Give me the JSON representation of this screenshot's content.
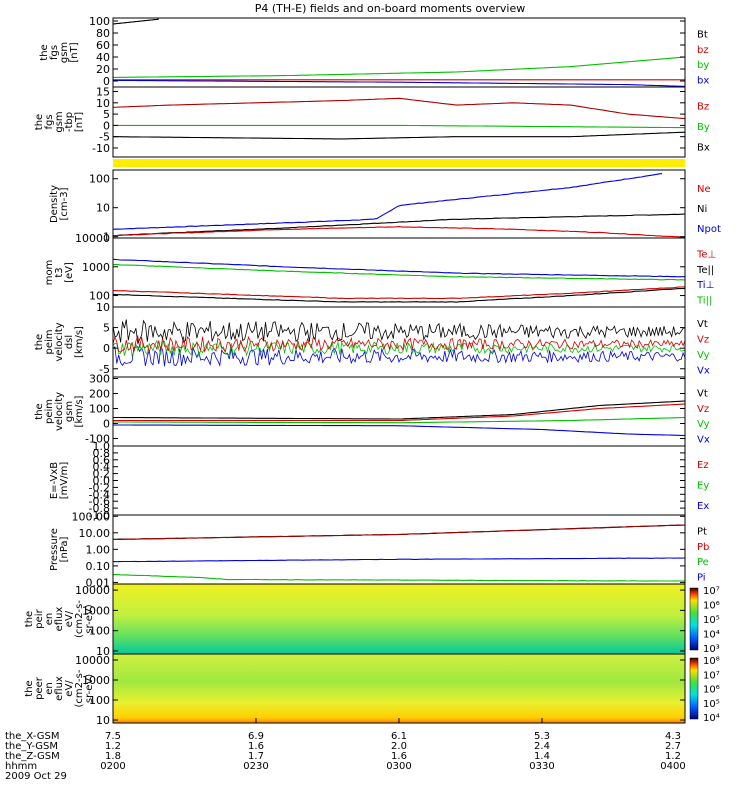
{
  "title": "P4 (TH-E) fields and on-board moments overview",
  "chart_data": [
    {
      "type": "line",
      "ylabel": [
        "the",
        "fgs",
        "gsm",
        "[nT]"
      ],
      "yticks": [
        "0",
        "20",
        "40",
        "60",
        "80",
        "100"
      ],
      "ylim": [
        -10,
        105
      ],
      "legend": [
        {
          "name": "Bt",
          "color": "#000000"
        },
        {
          "name": "bz",
          "color": "#d40000"
        },
        {
          "name": "by",
          "color": "#00c000"
        },
        {
          "name": "bx",
          "color": "#0000e0"
        }
      ],
      "series": [
        {
          "name": "Bt",
          "color": "#000000",
          "x": [
            0,
            0.08
          ],
          "y": [
            95,
            103
          ]
        },
        {
          "name": "bz",
          "color": "#d40000",
          "x": [
            0,
            1
          ],
          "y": [
            2,
            2
          ]
        },
        {
          "name": "by",
          "color": "#00c000",
          "x": [
            0,
            0.3,
            0.6,
            0.8,
            1
          ],
          "y": [
            6,
            9,
            15,
            24,
            40
          ]
        },
        {
          "name": "bx",
          "color": "#0000e0",
          "x": [
            0,
            0.5,
            0.9,
            1
          ],
          "y": [
            1,
            -2,
            -6,
            -9
          ]
        }
      ]
    },
    {
      "type": "line",
      "ylabel": [
        "the",
        "fgs",
        "gsm",
        "-tbp",
        "[nT]"
      ],
      "yticks": [
        "-10",
        "-5",
        "0",
        "5",
        "10",
        "15"
      ],
      "ylim": [
        -14,
        17
      ],
      "legend": [
        {
          "name": "Bz",
          "color": "#d40000"
        },
        {
          "name": "By",
          "color": "#00c000"
        },
        {
          "name": "Bx",
          "color": "#000000"
        }
      ],
      "series": [
        {
          "name": "Bz",
          "color": "#b00000",
          "x": [
            0,
            0.1,
            0.25,
            0.4,
            0.5,
            0.6,
            0.7,
            0.8,
            0.9,
            1
          ],
          "y": [
            8,
            9,
            10,
            11,
            12,
            9,
            10,
            9,
            5,
            3
          ]
        },
        {
          "name": "By",
          "color": "#00c000",
          "x": [
            0,
            0.5,
            1
          ],
          "y": [
            0,
            0,
            -1
          ]
        },
        {
          "name": "Bx",
          "color": "#000000",
          "x": [
            0,
            0.4,
            0.6,
            0.8,
            1
          ],
          "y": [
            -5,
            -6,
            -5,
            -5,
            -3
          ]
        }
      ]
    },
    {
      "type": "line",
      "ylabel": [
        "Density",
        "[cm-3]"
      ],
      "yticks": [
        "1",
        "10",
        "100"
      ],
      "ylog": true,
      "ylim": [
        0.9,
        200
      ],
      "legend": [
        {
          "name": "Ne",
          "color": "#d40000"
        },
        {
          "name": "Ni",
          "color": "#000000"
        },
        {
          "name": "Npot",
          "color": "#0000e0"
        }
      ],
      "series": [
        {
          "name": "Npot",
          "color": "#0000e0",
          "x": [
            0,
            0.3,
            0.46,
            0.5,
            0.8,
            0.96
          ],
          "y": [
            1.8,
            3,
            4,
            12,
            50,
            150
          ]
        },
        {
          "name": "Ni",
          "color": "#000000",
          "x": [
            0,
            0.3,
            0.6,
            1
          ],
          "y": [
            1.1,
            2,
            4,
            6
          ]
        },
        {
          "name": "Ne",
          "color": "#d40000",
          "x": [
            0,
            0.3,
            0.5,
            0.7,
            0.85,
            1
          ],
          "y": [
            1.1,
            1.8,
            2.2,
            1.8,
            1.4,
            0.95
          ]
        }
      ]
    },
    {
      "type": "line",
      "ylabel": [
        "mom",
        "t3",
        "[eV]"
      ],
      "yticks": [
        "100",
        "1000",
        "10000"
      ],
      "ylog": true,
      "ylim": [
        40,
        10000
      ],
      "legend": [
        {
          "name": "Te⊥",
          "color": "#d40000"
        },
        {
          "name": "Te||",
          "color": "#000000"
        },
        {
          "name": "Ti⊥",
          "color": "#0000e0"
        },
        {
          "name": "Ti||",
          "color": "#00c000"
        }
      ],
      "series": [
        {
          "name": "Ti⊥",
          "color": "#0000e0",
          "x": [
            0,
            0.3,
            0.6,
            1
          ],
          "y": [
            1800,
            1000,
            600,
            450
          ]
        },
        {
          "name": "Ti||",
          "color": "#00c000",
          "x": [
            0,
            0.3,
            0.6,
            1
          ],
          "y": [
            1200,
            700,
            450,
            350
          ]
        },
        {
          "name": "Te⊥",
          "color": "#d40000",
          "x": [
            0,
            0.2,
            0.4,
            0.6,
            0.8,
            1
          ],
          "y": [
            150,
            110,
            80,
            80,
            120,
            200
          ]
        },
        {
          "name": "Te||",
          "color": "#000000",
          "x": [
            0,
            0.2,
            0.4,
            0.6,
            0.8,
            1
          ],
          "y": [
            110,
            80,
            60,
            60,
            100,
            180
          ]
        }
      ]
    },
    {
      "type": "line",
      "ylabel": [
        "the",
        "peim",
        "velocity",
        "dsl",
        "[km/s]"
      ],
      "yticks": [
        "-5",
        "0",
        "5",
        "10"
      ],
      "ylim": [
        -7,
        10
      ],
      "legend": [
        {
          "name": "Vt",
          "color": "#000000"
        },
        {
          "name": "Vz",
          "color": "#d40000"
        },
        {
          "name": "Vy",
          "color": "#00c000"
        },
        {
          "name": "Vx",
          "color": "#0000e0"
        }
      ],
      "series": [
        {
          "name": "Vx",
          "color": "#0000e0",
          "base": -2,
          "noise": 2.5
        },
        {
          "name": "Vy",
          "color": "#00c000",
          "base": 0,
          "noise": 2
        },
        {
          "name": "Vz",
          "color": "#d40000",
          "base": 1,
          "noise": 2
        },
        {
          "name": "Vt",
          "color": "#000000",
          "base": 4,
          "noise": 3
        }
      ]
    },
    {
      "type": "line",
      "ylabel": [
        "the",
        "peim",
        "velocity",
        "gsm",
        "[km/s]"
      ],
      "yticks": [
        "-100",
        "0",
        "100",
        "200",
        "300"
      ],
      "ylim": [
        -150,
        310
      ],
      "legend": [
        {
          "name": "Vt",
          "color": "#000000"
        },
        {
          "name": "Vz",
          "color": "#d40000"
        },
        {
          "name": "Vy",
          "color": "#00c000"
        },
        {
          "name": "Vx",
          "color": "#0000e0"
        }
      ],
      "series": [
        {
          "name": "Vt",
          "color": "#000000",
          "x": [
            0,
            0.5,
            0.7,
            0.85,
            1
          ],
          "y": [
            40,
            30,
            60,
            120,
            150
          ]
        },
        {
          "name": "Vz",
          "color": "#d40000",
          "x": [
            0,
            0.5,
            0.7,
            0.85,
            1
          ],
          "y": [
            20,
            20,
            50,
            100,
            130
          ]
        },
        {
          "name": "Vy",
          "color": "#00c000",
          "x": [
            0,
            0.5,
            0.8,
            1
          ],
          "y": [
            10,
            5,
            20,
            40
          ]
        },
        {
          "name": "Vx",
          "color": "#0000e0",
          "x": [
            0,
            0.5,
            0.75,
            0.9,
            1
          ],
          "y": [
            -10,
            -15,
            -40,
            -70,
            -80
          ]
        }
      ]
    },
    {
      "type": "line",
      "ylabel": [
        "E=-VxB",
        "[mV/m]"
      ],
      "yticks": [
        "-1.0",
        "-0.8",
        "-0.6",
        "-0.4",
        "-0.2",
        "0.0",
        "0.2",
        "0.4",
        "0.6",
        "0.8",
        "1.0"
      ],
      "ylim": [
        -1,
        1
      ],
      "legend": [
        {
          "name": "Ez",
          "color": "#d40000"
        },
        {
          "name": "Ey",
          "color": "#00c000"
        },
        {
          "name": "Ex",
          "color": "#0000e0"
        }
      ],
      "series": []
    },
    {
      "type": "line",
      "ylabel": [
        "Pressure",
        "[nPa]"
      ],
      "yticks": [
        "0.01",
        "0.10",
        "1.00",
        "10.00",
        "100.00"
      ],
      "ylog": true,
      "ylim": [
        0.008,
        120
      ],
      "legend": [
        {
          "name": "Pt",
          "color": "#000000"
        },
        {
          "name": "Pb",
          "color": "#d40000"
        },
        {
          "name": "Pe",
          "color": "#00c000"
        },
        {
          "name": "Pi",
          "color": "#0000e0"
        }
      ],
      "series": [
        {
          "name": "Pt",
          "color": "#000000",
          "x": [
            0,
            0.5,
            1
          ],
          "y": [
            4,
            8,
            30
          ]
        },
        {
          "name": "Pb",
          "color": "#a00000",
          "x": [
            0,
            0.5,
            1
          ],
          "y": [
            4,
            8,
            30
          ]
        },
        {
          "name": "Pi",
          "color": "#0000e0",
          "x": [
            0,
            0.5,
            1
          ],
          "y": [
            0.18,
            0.25,
            0.3
          ]
        },
        {
          "name": "Pe",
          "color": "#00c000",
          "x": [
            0,
            0.15,
            0.2,
            1
          ],
          "y": [
            0.03,
            0.02,
            0.015,
            0.012
          ]
        }
      ]
    },
    {
      "type": "heatmap",
      "ylabel": [
        "the",
        "peir",
        "en",
        "eflux",
        "eV/",
        "(cm2-s-",
        "sr-eV)"
      ],
      "yticks": [
        "10",
        "100",
        "1000",
        "10000"
      ],
      "colorbar_ticks": [
        "10³",
        "10⁴",
        "10⁵",
        "10⁶",
        "10⁷"
      ]
    },
    {
      "type": "heatmap",
      "ylabel": [
        "the",
        "peer",
        "en",
        "eflux",
        "eV/",
        "(cm2-s-",
        "sr-eV)"
      ],
      "yticks": [
        "10",
        "100",
        "1000",
        "10000"
      ],
      "colorbar_ticks": [
        "10⁴",
        "10⁵",
        "10⁶",
        "10⁷",
        "10⁸"
      ]
    }
  ],
  "xaxis": {
    "row_labels": [
      "the_X-GSM",
      "the_Y-GSM",
      "the_Z-GSM",
      "hhmm",
      "2009 Oct 29"
    ],
    "columns": [
      {
        "x": "7.5",
        "y": "1.2",
        "z": "1.8",
        "t": "0200"
      },
      {
        "x": "6.9",
        "y": "1.6",
        "z": "1.7",
        "t": "0230"
      },
      {
        "x": "6.1",
        "y": "2.0",
        "z": "1.6",
        "t": "0300"
      },
      {
        "x": "5.3",
        "y": "2.4",
        "z": "1.4",
        "t": "0330"
      },
      {
        "x": "4.3",
        "y": "2.7",
        "z": "1.2",
        "t": "0400"
      }
    ]
  }
}
